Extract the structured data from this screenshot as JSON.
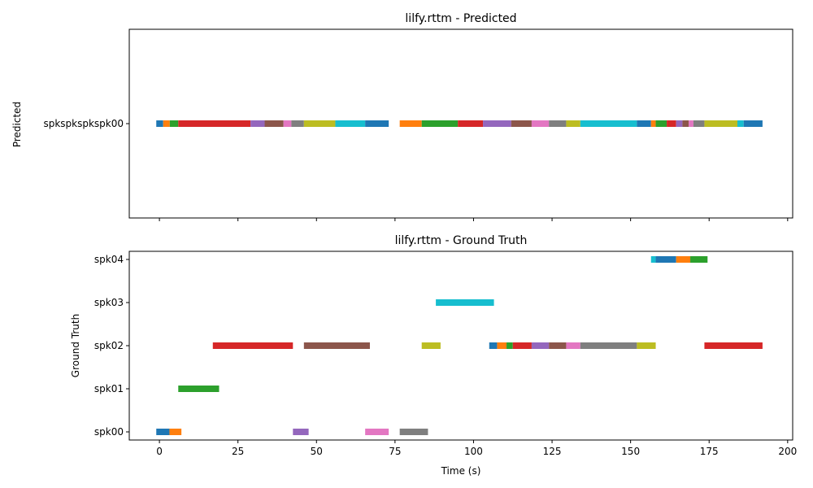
{
  "chart_data": [
    {
      "type": "timeline",
      "title": "lilfy.rttm - Predicted",
      "ylabel": "Predicted",
      "xlim": [
        -9.6,
        201.6
      ],
      "rows": [
        "spkspkspkspk00"
      ],
      "show_x_tick_labels": false,
      "x_ticks": [
        0,
        25,
        50,
        75,
        100,
        125,
        150,
        175,
        200
      ],
      "segments": [
        {
          "row": "spkspkspkspk00",
          "start": -1.0,
          "end": 1.2,
          "color": "#1f77b4"
        },
        {
          "row": "spkspkspkspk00",
          "start": 1.2,
          "end": 3.3,
          "color": "#ff7f0e"
        },
        {
          "row": "spkspkspkspk00",
          "start": 3.3,
          "end": 6.0,
          "color": "#2ca02c"
        },
        {
          "row": "spkspkspkspk00",
          "start": 6.0,
          "end": 29.0,
          "color": "#d62728"
        },
        {
          "row": "spkspkspkspk00",
          "start": 29.0,
          "end": 33.5,
          "color": "#9467bd"
        },
        {
          "row": "spkspkspkspk00",
          "start": 33.5,
          "end": 39.5,
          "color": "#8c564b"
        },
        {
          "row": "spkspkspkspk00",
          "start": 39.5,
          "end": 42.0,
          "color": "#e377c2"
        },
        {
          "row": "spkspkspkspk00",
          "start": 42.0,
          "end": 46.0,
          "color": "#7f7f7f"
        },
        {
          "row": "spkspkspkspk00",
          "start": 46.0,
          "end": 56.0,
          "color": "#bcbd22"
        },
        {
          "row": "spkspkspkspk00",
          "start": 56.0,
          "end": 65.5,
          "color": "#17becf"
        },
        {
          "row": "spkspkspkspk00",
          "start": 65.5,
          "end": 73.0,
          "color": "#1f77b4"
        },
        {
          "row": "spkspkspkspk00",
          "start": 76.5,
          "end": 83.5,
          "color": "#ff7f0e"
        },
        {
          "row": "spkspkspkspk00",
          "start": 83.5,
          "end": 95.0,
          "color": "#2ca02c"
        },
        {
          "row": "spkspkspkspk00",
          "start": 95.0,
          "end": 103.0,
          "color": "#d62728"
        },
        {
          "row": "spkspkspkspk00",
          "start": 103.0,
          "end": 112.0,
          "color": "#9467bd"
        },
        {
          "row": "spkspkspkspk00",
          "start": 112.0,
          "end": 118.5,
          "color": "#8c564b"
        },
        {
          "row": "spkspkspkspk00",
          "start": 118.5,
          "end": 124.0,
          "color": "#e377c2"
        },
        {
          "row": "spkspkspkspk00",
          "start": 124.0,
          "end": 129.5,
          "color": "#7f7f7f"
        },
        {
          "row": "spkspkspkspk00",
          "start": 129.5,
          "end": 134.0,
          "color": "#bcbd22"
        },
        {
          "row": "spkspkspkspk00",
          "start": 134.0,
          "end": 152.0,
          "color": "#17becf"
        },
        {
          "row": "spkspkspkspk00",
          "start": 152.0,
          "end": 156.5,
          "color": "#1f77b4"
        },
        {
          "row": "spkspkspkspk00",
          "start": 156.5,
          "end": 158.0,
          "color": "#ff7f0e"
        },
        {
          "row": "spkspkspkspk00",
          "start": 158.0,
          "end": 161.5,
          "color": "#2ca02c"
        },
        {
          "row": "spkspkspkspk00",
          "start": 161.5,
          "end": 164.5,
          "color": "#d62728"
        },
        {
          "row": "spkspkspkspk00",
          "start": 164.5,
          "end": 166.5,
          "color": "#9467bd"
        },
        {
          "row": "spkspkspkspk00",
          "start": 166.5,
          "end": 168.5,
          "color": "#8c564b"
        },
        {
          "row": "spkspkspkspk00",
          "start": 168.5,
          "end": 170.0,
          "color": "#e377c2"
        },
        {
          "row": "spkspkspkspk00",
          "start": 170.0,
          "end": 173.5,
          "color": "#7f7f7f"
        },
        {
          "row": "spkspkspkspk00",
          "start": 173.5,
          "end": 184.0,
          "color": "#bcbd22"
        },
        {
          "row": "spkspkspkspk00",
          "start": 184.0,
          "end": 186.0,
          "color": "#17becf"
        },
        {
          "row": "spkspkspkspk00",
          "start": 186.0,
          "end": 192.0,
          "color": "#1f77b4"
        }
      ]
    },
    {
      "type": "timeline",
      "title": "lilfy.rttm - Ground Truth",
      "xlabel": "Time (s)",
      "ylabel": "Ground Truth",
      "xlim": [
        -9.6,
        201.6
      ],
      "rows": [
        "spk00",
        "spk01",
        "spk02",
        "spk03",
        "spk04"
      ],
      "show_x_tick_labels": true,
      "x_ticks": [
        0,
        25,
        50,
        75,
        100,
        125,
        150,
        175,
        200
      ],
      "segments": [
        {
          "row": "spk00",
          "start": -1.0,
          "end": 3.2,
          "color": "#1f77b4"
        },
        {
          "row": "spk00",
          "start": 3.2,
          "end": 7.0,
          "color": "#ff7f0e"
        },
        {
          "row": "spk01",
          "start": 6.0,
          "end": 19.0,
          "color": "#2ca02c"
        },
        {
          "row": "spk02",
          "start": 17.0,
          "end": 42.5,
          "color": "#d62728"
        },
        {
          "row": "spk00",
          "start": 42.5,
          "end": 47.5,
          "color": "#9467bd"
        },
        {
          "row": "spk02",
          "start": 46.0,
          "end": 67.0,
          "color": "#8c564b"
        },
        {
          "row": "spk00",
          "start": 65.5,
          "end": 73.0,
          "color": "#e377c2"
        },
        {
          "row": "spk00",
          "start": 76.5,
          "end": 85.5,
          "color": "#7f7f7f"
        },
        {
          "row": "spk02",
          "start": 83.5,
          "end": 89.5,
          "color": "#bcbd22"
        },
        {
          "row": "spk03",
          "start": 88.0,
          "end": 106.5,
          "color": "#17becf"
        },
        {
          "row": "spk02",
          "start": 105.0,
          "end": 107.5,
          "color": "#1f77b4"
        },
        {
          "row": "spk02",
          "start": 107.5,
          "end": 110.5,
          "color": "#ff7f0e"
        },
        {
          "row": "spk02",
          "start": 110.5,
          "end": 112.5,
          "color": "#2ca02c"
        },
        {
          "row": "spk02",
          "start": 112.5,
          "end": 118.5,
          "color": "#d62728"
        },
        {
          "row": "spk02",
          "start": 118.5,
          "end": 124.0,
          "color": "#9467bd"
        },
        {
          "row": "spk02",
          "start": 124.0,
          "end": 129.5,
          "color": "#8c564b"
        },
        {
          "row": "spk02",
          "start": 129.5,
          "end": 134.0,
          "color": "#e377c2"
        },
        {
          "row": "spk02",
          "start": 134.0,
          "end": 152.0,
          "color": "#7f7f7f"
        },
        {
          "row": "spk02",
          "start": 152.0,
          "end": 158.0,
          "color": "#bcbd22"
        },
        {
          "row": "spk04",
          "start": 156.5,
          "end": 158.0,
          "color": "#17becf"
        },
        {
          "row": "spk04",
          "start": 158.0,
          "end": 164.5,
          "color": "#1f77b4"
        },
        {
          "row": "spk04",
          "start": 164.5,
          "end": 169.0,
          "color": "#ff7f0e"
        },
        {
          "row": "spk04",
          "start": 169.0,
          "end": 174.5,
          "color": "#2ca02c"
        },
        {
          "row": "spk02",
          "start": 173.5,
          "end": 192.0,
          "color": "#d62728"
        }
      ]
    }
  ]
}
